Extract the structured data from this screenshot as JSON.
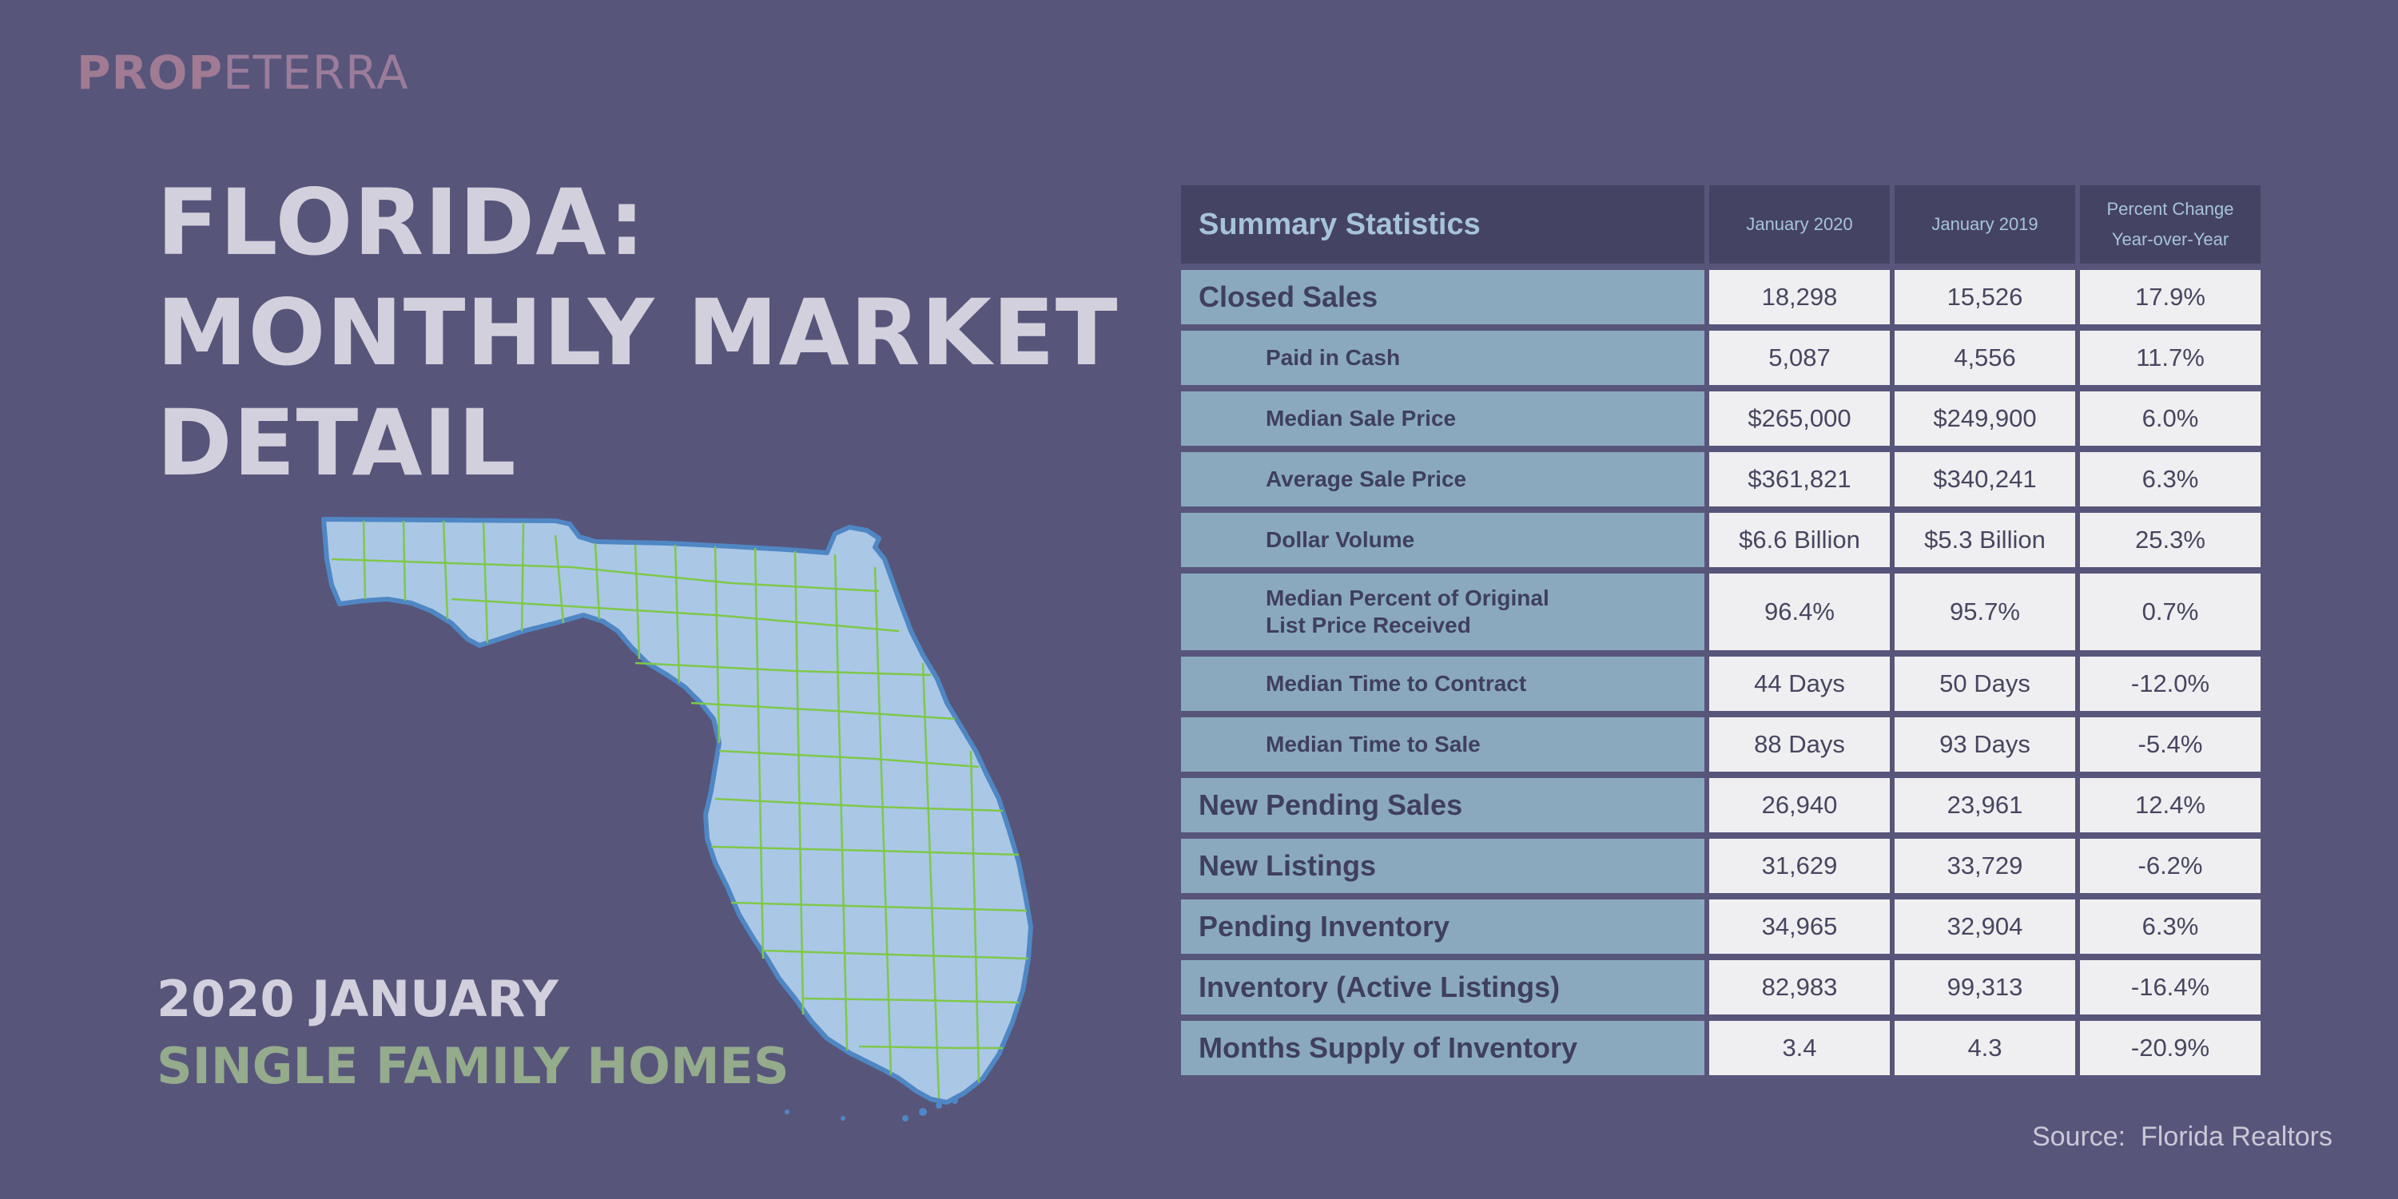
{
  "logo": {
    "part1": "PROP",
    "part2": "ETERRA"
  },
  "title": {
    "line1": "FLORIDA:",
    "line2": "MONTHLY MARKET",
    "line3": "DETAIL"
  },
  "subtitle": {
    "period": "2020 JANUARY",
    "category": "SINGLE FAMILY HOMES"
  },
  "map": {
    "icon": "florida-counties-map-icon",
    "fill": "#aac7e6",
    "outline": "#4f87c4",
    "county_lines": "#7ec84a"
  },
  "table": {
    "header": {
      "label": "Summary Statistics",
      "col1": "January 2020",
      "col2": "January 2019",
      "col3_line1": "Percent Change",
      "col3_line2": "Year-over-Year"
    },
    "rows": [
      {
        "label": "Closed Sales",
        "level": "main",
        "jan2020": "18,298",
        "jan2019": "15,526",
        "change": "17.9%"
      },
      {
        "label": "Paid in Cash",
        "level": "sub",
        "jan2020": "5,087",
        "jan2019": "4,556",
        "change": "11.7%"
      },
      {
        "label": "Median Sale Price",
        "level": "sub",
        "jan2020": "$265,000",
        "jan2019": "$249,900",
        "change": "6.0%"
      },
      {
        "label": "Average Sale Price",
        "level": "sub",
        "jan2020": "$361,821",
        "jan2019": "$340,241",
        "change": "6.3%"
      },
      {
        "label": "Dollar Volume",
        "level": "sub",
        "jan2020": "$6.6 Billion",
        "jan2019": "$5.3 Billion",
        "change": "25.3%"
      },
      {
        "label": "Median Percent of Original",
        "label_line2": "List Price Received",
        "level": "sub",
        "jan2020": "96.4%",
        "jan2019": "95.7%",
        "change": "0.7%"
      },
      {
        "label": "Median Time to Contract",
        "level": "sub",
        "jan2020": "44 Days",
        "jan2019": "50 Days",
        "change": "-12.0%"
      },
      {
        "label": "Median Time to Sale",
        "level": "sub",
        "jan2020": "88 Days",
        "jan2019": "93 Days",
        "change": "-5.4%"
      },
      {
        "label": "New Pending Sales",
        "level": "main",
        "jan2020": "26,940",
        "jan2019": "23,961",
        "change": "12.4%"
      },
      {
        "label": "New Listings",
        "level": "main",
        "jan2020": "31,629",
        "jan2019": "33,729",
        "change": "-6.2%"
      },
      {
        "label": "Pending Inventory",
        "level": "main",
        "jan2020": "34,965",
        "jan2019": "32,904",
        "change": "6.3%"
      },
      {
        "label": "Inventory (Active Listings)",
        "level": "main",
        "jan2020": "82,983",
        "jan2019": "99,313",
        "change": "-16.4%"
      },
      {
        "label": "Months Supply of Inventory",
        "level": "main",
        "jan2020": "3.4",
        "jan2019": "4.3",
        "change": "-20.9%"
      }
    ]
  },
  "source": "Source:  Florida Realtors"
}
